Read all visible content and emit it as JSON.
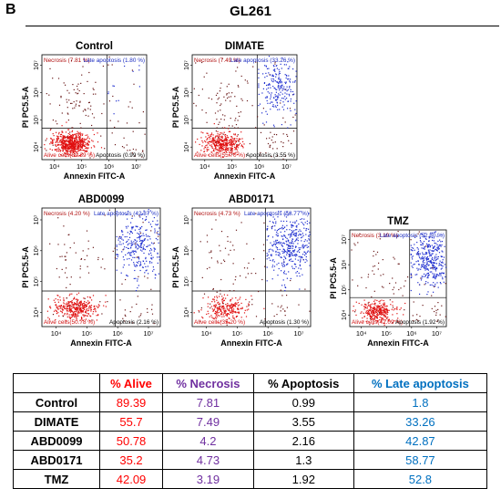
{
  "panel_letter": "B",
  "title": "GL261",
  "colors": {
    "alive": "#ff0000",
    "necrosis": "#7030a0",
    "apoptosis": "#000000",
    "late": "#0070c0",
    "cell_red": "#e01010",
    "cell_blue": "#2030d0",
    "cell_dark": "#6a1a1a"
  },
  "chart_data": [
    {
      "type": "scatter",
      "title": "Control",
      "xlabel": "Annexin FITC-A",
      "ylabel": "PI PC5.5-A",
      "x_ticks": [
        "10⁴",
        "10⁵",
        "10⁶",
        "10⁷"
      ],
      "y_ticks": [
        "10⁴",
        "10⁵",
        "10⁶",
        "10⁷"
      ],
      "quadrants": {
        "alive": "Alive cells(89.39 %)",
        "necrosis": "Necrosis (7.81 %)",
        "late_apoptosis": "Late apoptosis (1.80 %)",
        "apoptosis": "Apoptosis (0.99 %)"
      },
      "percent": {
        "alive": 89.39,
        "necrosis": 7.81,
        "apoptosis": 0.99,
        "late_apoptosis": 1.8
      }
    },
    {
      "type": "scatter",
      "title": "DIMATE",
      "xlabel": "Annexin FITC-A",
      "ylabel": "PI PC5.5-A",
      "x_ticks": [
        "10⁴",
        "10⁵",
        "10⁶",
        "10⁷"
      ],
      "y_ticks": [
        "10⁴",
        "10⁵",
        "10⁶",
        "10⁷"
      ],
      "quadrants": {
        "alive": "Alive cells(55.70 %)",
        "necrosis": "Necrosis (7.49 %)",
        "late_apoptosis": "Late apoptosis (33.26 %)",
        "apoptosis": "Apoptosis (3.55 %)"
      },
      "percent": {
        "alive": 55.7,
        "necrosis": 7.49,
        "apoptosis": 3.55,
        "late_apoptosis": 33.26
      }
    },
    {
      "type": "scatter",
      "title": "ABD0099",
      "xlabel": "Annexin FITC-A",
      "ylabel": "PI PC5.5-A",
      "x_ticks": [
        "10⁴",
        "10⁵",
        "10⁶",
        "10⁷"
      ],
      "y_ticks": [
        "10⁴",
        "10⁵",
        "10⁶",
        "10⁷"
      ],
      "quadrants": {
        "alive": "Alive cells(50.78 %)",
        "necrosis": "Necrosis (4.20 %)",
        "late_apoptosis": "Late apoptosis (42.87 %)",
        "apoptosis": "Apoptosis (2.16 %)"
      },
      "percent": {
        "alive": 50.78,
        "necrosis": 4.2,
        "apoptosis": 2.16,
        "late_apoptosis": 42.87
      }
    },
    {
      "type": "scatter",
      "title": "ABD0171",
      "xlabel": "Annexin FITC-A",
      "ylabel": "PI PC5.5-A",
      "x_ticks": [
        "10⁴",
        "10⁵",
        "10⁶",
        "10⁷"
      ],
      "y_ticks": [
        "10⁴",
        "10⁵",
        "10⁶",
        "10⁷"
      ],
      "quadrants": {
        "alive": "Alive cells(35.20 %)",
        "necrosis": "Necrosis (4.73 %)",
        "late_apoptosis": "Late apoptosis (58.77 %)",
        "apoptosis": "Apoptosis (1.30 %)"
      },
      "percent": {
        "alive": 35.2,
        "necrosis": 4.73,
        "apoptosis": 1.3,
        "late_apoptosis": 58.77
      }
    },
    {
      "type": "scatter",
      "title": "TMZ",
      "xlabel": "Annexin FITC-A",
      "ylabel": "PI PC5.5-A",
      "x_ticks": [
        "10⁴",
        "10⁵",
        "10⁶",
        "10⁷"
      ],
      "y_ticks": [
        "10⁴",
        "10⁵",
        "10⁶",
        "10⁷"
      ],
      "quadrants": {
        "alive": "Alive cells(42.09 %)",
        "necrosis": "Necrosis (3.19 %)",
        "late_apoptosis": "Late apoptosis (52.80 %)",
        "apoptosis": "Apoptosis (1.92 %)"
      },
      "percent": {
        "alive": 42.09,
        "necrosis": 3.19,
        "apoptosis": 1.92,
        "late_apoptosis": 52.8
      }
    }
  ],
  "table": {
    "headers": [
      "",
      "% Alive",
      "% Necrosis",
      "% Apoptosis",
      "% Late apoptosis"
    ],
    "rows": [
      [
        "Control",
        "89.39",
        "7.81",
        "0.99",
        "1.8"
      ],
      [
        "DIMATE",
        "55.7",
        "7.49",
        "3.55",
        "33.26"
      ],
      [
        "ABD0099",
        "50.78",
        "4.2",
        "2.16",
        "42.87"
      ],
      [
        "ABD0171",
        "35.2",
        "4.73",
        "1.3",
        "58.77"
      ],
      [
        "TMZ",
        "42.09",
        "3.19",
        "1.92",
        "52.8"
      ]
    ]
  }
}
